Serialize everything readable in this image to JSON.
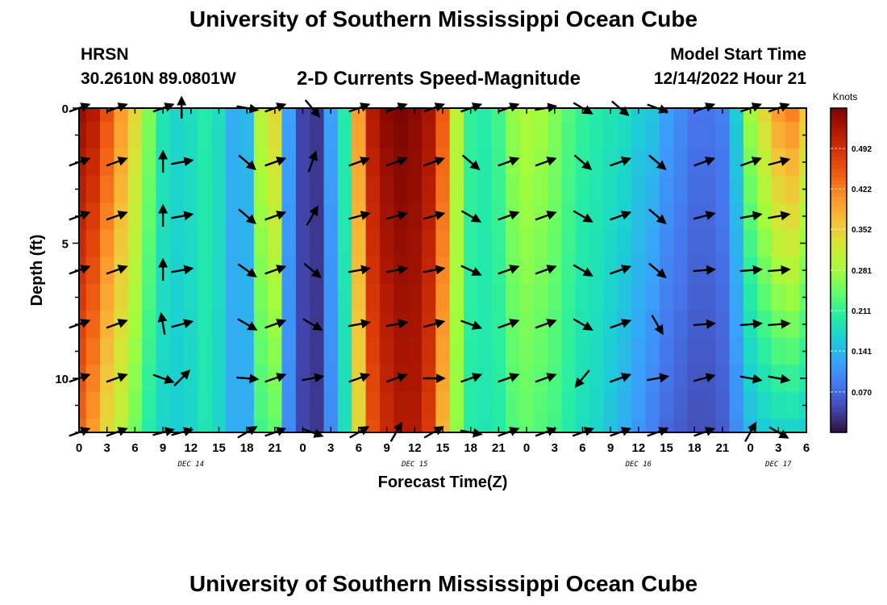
{
  "header": {
    "title": "University of Southern Mississippi Ocean Cube",
    "station": "HRSN",
    "coordinates": "30.2610N  89.0801W",
    "subtitle": "2-D Currents Speed-Magnitude",
    "model_start_label": "Model Start Time",
    "model_start_value": "12/14/2022 Hour 21"
  },
  "footer": {
    "title": "University of Southern Mississippi Ocean Cube"
  },
  "chart_data": {
    "type": "heatmap",
    "title": "2-D Currents Speed-Magnitude",
    "xlabel": "Forecast Time(Z)",
    "ylabel": "Depth (ft)",
    "x_tick_labels": [
      "0",
      "3",
      "6",
      "9",
      "12",
      "15",
      "18",
      "21",
      "0",
      "3",
      "6",
      "9",
      "12",
      "15",
      "18",
      "21",
      "0",
      "3",
      "6",
      "9",
      "12",
      "15",
      "18",
      "21",
      "0",
      "3",
      "6"
    ],
    "x_hours": [
      0,
      78
    ],
    "date_labels": [
      {
        "text": "DEC 14",
        "hour": 12
      },
      {
        "text": "DEC 15",
        "hour": 36
      },
      {
        "text": "DEC 16",
        "hour": 60
      },
      {
        "text": "DEC 17",
        "hour": 75
      }
    ],
    "ylim": [
      0,
      12
    ],
    "y_ticks": [
      0,
      5,
      10
    ],
    "colorbar": {
      "label": "Knots",
      "range": [
        0.0,
        0.562
      ],
      "ticks": [
        "0.492",
        "0.422",
        "0.352",
        "0.281",
        "0.211",
        "0.141",
        "0.070"
      ]
    },
    "colormap": [
      "#30123b",
      "#4145ab",
      "#4675ed",
      "#39a2fc",
      "#1bcfd4",
      "#24eca6",
      "#61fc6c",
      "#a4fc3b",
      "#d1e834",
      "#f3c63a",
      "#fe9b2d",
      "#f36315",
      "#d93806",
      "#b11901",
      "#7a0403"
    ],
    "depths_ft": [
      0,
      1,
      2,
      3,
      4,
      5,
      6,
      7,
      8,
      9,
      10,
      11,
      12
    ],
    "time_hours_profile": [
      0,
      1.5,
      3,
      4.5,
      6,
      7.5,
      9,
      10.5,
      12,
      13.5,
      15,
      16.5,
      18,
      19.5,
      21,
      22.5,
      24,
      25.5,
      27,
      28.5,
      30,
      31.5,
      33,
      34.5,
      36,
      37.5,
      39,
      40.5,
      42,
      43.5,
      45,
      46.5,
      48,
      49.5,
      51,
      52.5,
      54,
      55.5,
      57,
      58.5,
      60,
      61.5,
      63,
      64.5,
      66,
      67.5,
      69,
      70.5,
      72,
      73.5,
      75,
      76.5,
      78
    ],
    "surface_speed_knots": [
      0.54,
      0.52,
      0.46,
      0.4,
      0.34,
      0.26,
      0.19,
      0.17,
      0.18,
      0.2,
      0.18,
      0.13,
      0.14,
      0.3,
      0.34,
      0.12,
      0.04,
      0.03,
      0.12,
      0.2,
      0.4,
      0.52,
      0.55,
      0.56,
      0.55,
      0.53,
      0.45,
      0.3,
      0.21,
      0.2,
      0.22,
      0.27,
      0.29,
      0.28,
      0.26,
      0.23,
      0.21,
      0.2,
      0.19,
      0.18,
      0.16,
      0.15,
      0.12,
      0.1,
      0.08,
      0.08,
      0.09,
      0.16,
      0.28,
      0.34,
      0.4,
      0.42,
      0.36
    ],
    "bottom_speed_knots": [
      0.44,
      0.4,
      0.34,
      0.3,
      0.25,
      0.2,
      0.17,
      0.16,
      0.17,
      0.19,
      0.17,
      0.13,
      0.13,
      0.22,
      0.24,
      0.1,
      0.04,
      0.03,
      0.1,
      0.18,
      0.34,
      0.46,
      0.5,
      0.52,
      0.52,
      0.48,
      0.38,
      0.27,
      0.2,
      0.19,
      0.2,
      0.23,
      0.24,
      0.23,
      0.22,
      0.2,
      0.18,
      0.17,
      0.15,
      0.13,
      0.11,
      0.09,
      0.07,
      0.06,
      0.05,
      0.05,
      0.06,
      0.1,
      0.14,
      0.16,
      0.17,
      0.17,
      0.16
    ],
    "arrow_depths_ft": [
      0,
      2,
      4,
      6,
      8,
      10,
      12
    ],
    "arrow_times_hours": [
      0,
      4,
      9,
      11,
      18,
      21,
      25,
      30,
      34,
      38,
      42,
      46,
      50,
      54,
      58,
      62,
      67,
      72,
      75
    ],
    "arrow_directions_deg": [
      [
        20,
        20,
        20,
        90,
        350,
        20,
        310,
        20,
        20,
        20,
        20,
        20,
        10,
        330,
        320,
        340,
        20,
        20,
        20
      ],
      [
        20,
        20,
        90,
        10,
        320,
        20,
        70,
        20,
        20,
        20,
        320,
        20,
        20,
        320,
        20,
        320,
        20,
        20,
        15
      ],
      [
        20,
        20,
        90,
        10,
        320,
        20,
        60,
        15,
        15,
        15,
        330,
        20,
        20,
        330,
        20,
        320,
        15,
        10,
        10
      ],
      [
        20,
        20,
        90,
        10,
        325,
        20,
        320,
        10,
        10,
        10,
        335,
        20,
        20,
        330,
        20,
        320,
        5,
        5,
        5
      ],
      [
        20,
        20,
        100,
        15,
        330,
        20,
        330,
        10,
        10,
        15,
        340,
        20,
        20,
        330,
        20,
        300,
        5,
        5,
        5
      ],
      [
        20,
        20,
        340,
        45,
        355,
        20,
        10,
        20,
        20,
        0,
        20,
        20,
        20,
        230,
        20,
        10,
        15,
        350,
        350
      ],
      [
        20,
        20,
        15,
        15,
        30,
        20,
        340,
        30,
        60,
        30,
        350,
        20,
        20,
        20,
        20,
        20,
        20,
        60,
        330
      ]
    ]
  }
}
